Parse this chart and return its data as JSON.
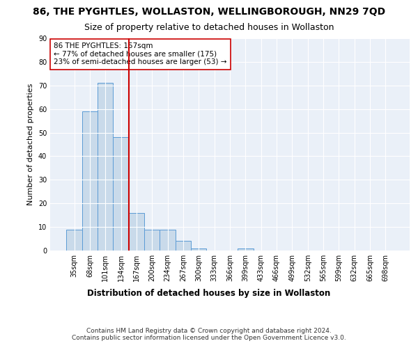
{
  "title1": "86, THE PYGHTLES, WOLLASTON, WELLINGBOROUGH, NN29 7QD",
  "title2": "Size of property relative to detached houses in Wollaston",
  "xlabel": "Distribution of detached houses by size in Wollaston",
  "ylabel": "Number of detached properties",
  "bar_labels": [
    "35sqm",
    "68sqm",
    "101sqm",
    "134sqm",
    "167sqm",
    "200sqm",
    "234sqm",
    "267sqm",
    "300sqm",
    "333sqm",
    "366sqm",
    "399sqm",
    "433sqm",
    "466sqm",
    "499sqm",
    "532sqm",
    "565sqm",
    "599sqm",
    "632sqm",
    "665sqm",
    "698sqm"
  ],
  "bar_values": [
    9,
    59,
    71,
    48,
    16,
    9,
    9,
    4,
    1,
    0,
    0,
    1,
    0,
    0,
    0,
    0,
    0,
    0,
    0,
    0,
    0
  ],
  "bar_color": "#c9daea",
  "bar_edge_color": "#5b9bd5",
  "vline_x_idx": 3,
  "vline_color": "#cc0000",
  "annotation_line1": "86 THE PYGHTLES: 157sqm",
  "annotation_line2": "← 77% of detached houses are smaller (175)",
  "annotation_line3": "23% of semi-detached houses are larger (53) →",
  "annotation_box_color": "white",
  "annotation_box_edge_color": "#cc0000",
  "ylim": [
    0,
    90
  ],
  "yticks": [
    0,
    10,
    20,
    30,
    40,
    50,
    60,
    70,
    80,
    90
  ],
  "footer_text": "Contains HM Land Registry data © Crown copyright and database right 2024.\nContains public sector information licensed under the Open Government Licence v3.0.",
  "background_color": "#ffffff",
  "plot_background_color": "#eaf0f8",
  "title1_fontsize": 10,
  "title2_fontsize": 9,
  "annotation_fontsize": 7.5,
  "xlabel_fontsize": 8.5,
  "ylabel_fontsize": 8,
  "footer_fontsize": 6.5,
  "tick_fontsize": 7
}
